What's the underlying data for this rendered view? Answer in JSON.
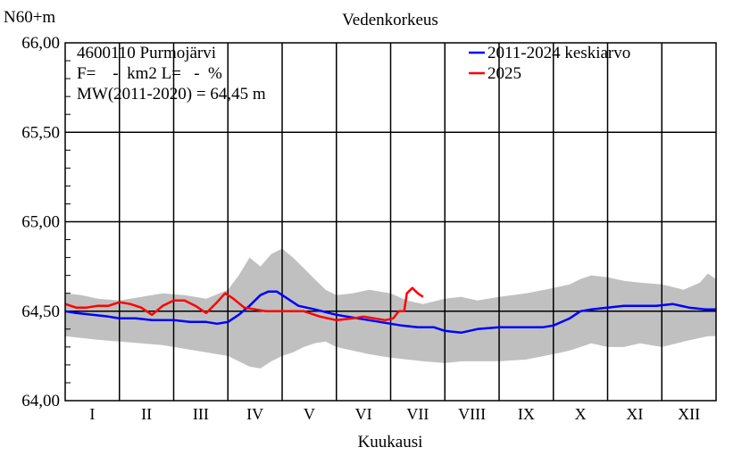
{
  "chart_data": {
    "type": "line",
    "title": "Vedenkorkeus",
    "ylabel": "N60+m",
    "xlabel": "Kuukausi",
    "ylim": [
      64.0,
      66.0
    ],
    "xlim": [
      0,
      12
    ],
    "yticks": [
      "64,00",
      "64,50",
      "65,00",
      "65,50",
      "66,00"
    ],
    "ytick_values": [
      64.0,
      64.5,
      65.0,
      65.5,
      66.0
    ],
    "categories": [
      "I",
      "II",
      "III",
      "IV",
      "V",
      "VI",
      "VII",
      "VIII",
      "IX",
      "X",
      "XI",
      "XII"
    ],
    "grid": true,
    "legend_position": "top-right",
    "info_lines": [
      "4600110 Purmojärvi",
      "F=    -  km2 L=   -  %",
      "MW(2011-2020) = 64,45 m"
    ],
    "band": {
      "x": [
        0,
        0.3,
        0.6,
        1.0,
        1.4,
        1.8,
        2.2,
        2.6,
        3.0,
        3.2,
        3.4,
        3.6,
        3.8,
        4.0,
        4.2,
        4.4,
        4.6,
        4.8,
        5.0,
        5.3,
        5.6,
        6.0,
        6.3,
        6.6,
        7.0,
        7.3,
        7.6,
        8.0,
        8.5,
        9.0,
        9.3,
        9.5,
        9.7,
        10.0,
        10.3,
        10.6,
        11.0,
        11.4,
        11.7,
        11.85,
        12.0
      ],
      "upper": [
        64.6,
        64.59,
        64.57,
        64.56,
        64.58,
        64.6,
        64.59,
        64.57,
        64.62,
        64.7,
        64.8,
        64.75,
        64.82,
        64.85,
        64.8,
        64.74,
        64.68,
        64.62,
        64.59,
        64.6,
        64.62,
        64.6,
        64.56,
        64.54,
        64.57,
        64.58,
        64.56,
        64.58,
        64.6,
        64.63,
        64.65,
        64.68,
        64.7,
        64.69,
        64.67,
        64.66,
        64.65,
        64.62,
        64.66,
        64.71,
        64.68
      ],
      "lower": [
        64.36,
        64.35,
        64.34,
        64.33,
        64.32,
        64.31,
        64.29,
        64.27,
        64.25,
        64.22,
        64.19,
        64.18,
        64.22,
        64.25,
        64.27,
        64.3,
        64.32,
        64.33,
        64.3,
        64.28,
        64.26,
        64.24,
        64.23,
        64.22,
        64.21,
        64.22,
        64.22,
        64.22,
        64.23,
        64.26,
        64.28,
        64.3,
        64.32,
        64.3,
        64.3,
        64.32,
        64.3,
        64.33,
        64.35,
        64.36,
        64.36
      ]
    },
    "series": [
      {
        "name": "2011-2024 keskiarvo",
        "color": "#0000ff",
        "x": [
          0,
          0.2,
          0.5,
          0.8,
          1.0,
          1.3,
          1.6,
          2.0,
          2.3,
          2.6,
          2.8,
          3.0,
          3.2,
          3.4,
          3.6,
          3.75,
          3.9,
          4.1,
          4.3,
          4.6,
          5.0,
          5.4,
          5.8,
          6.2,
          6.5,
          6.8,
          7.0,
          7.3,
          7.6,
          8.0,
          8.4,
          8.8,
          9.0,
          9.3,
          9.5,
          9.7,
          10.0,
          10.3,
          10.6,
          10.9,
          11.2,
          11.5,
          11.8,
          12.0
        ],
        "values": [
          64.5,
          64.49,
          64.48,
          64.47,
          64.46,
          64.46,
          64.45,
          64.45,
          64.44,
          64.44,
          64.43,
          64.44,
          64.48,
          64.53,
          64.59,
          64.61,
          64.61,
          64.57,
          64.53,
          64.51,
          64.48,
          64.46,
          64.44,
          64.42,
          64.41,
          64.41,
          64.39,
          64.38,
          64.4,
          64.41,
          64.41,
          64.41,
          64.42,
          64.46,
          64.5,
          64.51,
          64.52,
          64.53,
          64.53,
          64.53,
          64.54,
          64.52,
          64.51,
          64.51
        ]
      },
      {
        "name": "2025",
        "color": "#ff0000",
        "x": [
          0,
          0.2,
          0.4,
          0.6,
          0.8,
          1.0,
          1.2,
          1.4,
          1.6,
          1.8,
          2.0,
          2.2,
          2.4,
          2.6,
          2.8,
          2.95,
          3.1,
          3.3,
          3.5,
          3.7,
          3.9,
          4.1,
          4.4,
          4.7,
          5.0,
          5.3,
          5.5,
          5.7,
          5.9,
          6.05,
          6.15,
          6.25,
          6.3,
          6.4,
          6.5,
          6.6
        ],
        "values": [
          64.54,
          64.52,
          64.52,
          64.53,
          64.53,
          64.55,
          64.54,
          64.52,
          64.48,
          64.53,
          64.56,
          64.56,
          64.53,
          64.49,
          64.55,
          64.6,
          64.57,
          64.52,
          64.51,
          64.5,
          64.5,
          64.5,
          64.5,
          64.47,
          64.45,
          64.46,
          64.47,
          64.46,
          64.45,
          64.46,
          64.5,
          64.5,
          64.6,
          64.63,
          64.6,
          64.58
        ]
      }
    ]
  }
}
